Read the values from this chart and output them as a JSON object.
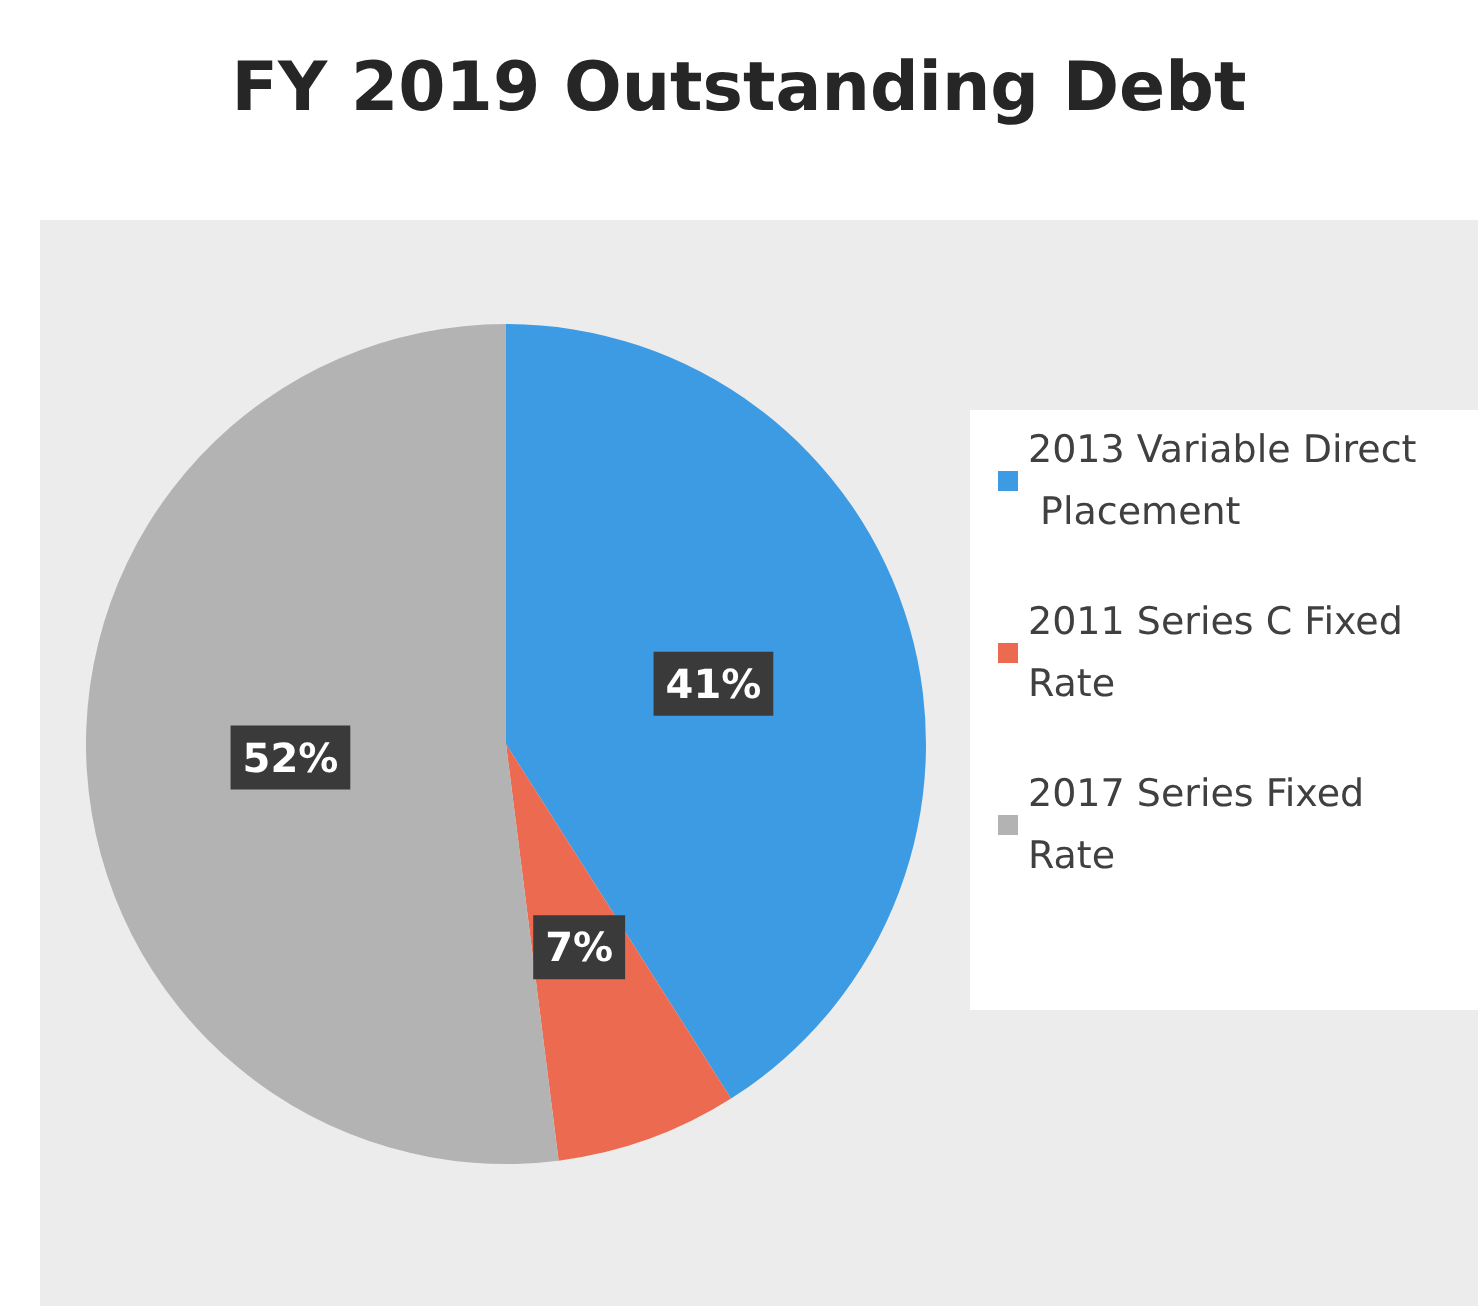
{
  "chart_data": {
    "type": "pie",
    "title": "FY 2019 Outstanding Debt",
    "categories": [
      "2013 Variable Direct Placement",
      "2011 Series C Fixed Rate",
      "2017 Series Fixed Rate"
    ],
    "values": [
      41,
      7,
      52
    ],
    "colors": [
      "#3d9be3",
      "#ec6a4f",
      "#b3b3b3"
    ],
    "value_labels": [
      "41%",
      "7%",
      "52%"
    ],
    "legend": "right"
  }
}
